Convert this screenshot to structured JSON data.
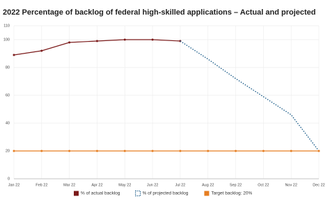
{
  "chart_data": {
    "type": "line",
    "title": "2022 Percentage of backlog of federal high-skilled applications – Actual and projected",
    "categories": [
      "Jan 22",
      "Feb 22",
      "Mar 22",
      "Apr 22",
      "May 22",
      "Jun 22",
      "Jul 22",
      "Aug 22",
      "Sep 22",
      "Oct 22",
      "Nov 22",
      "Dec 22"
    ],
    "series": [
      {
        "name": "% of actual backlog",
        "color": "#7b1a1a",
        "style": "solid",
        "markers": true,
        "values": [
          89,
          92,
          98,
          99,
          100,
          100,
          99,
          null,
          null,
          null,
          null,
          null
        ]
      },
      {
        "name": "% of projected backlog",
        "color": "#1f5f8b",
        "style": "dotted",
        "markers": false,
        "values": [
          null,
          null,
          null,
          null,
          null,
          null,
          99,
          86,
          72,
          59,
          46,
          20
        ]
      },
      {
        "name": "Target backlog: 20%",
        "color": "#e67e22",
        "style": "solid",
        "markers": true,
        "values": [
          20,
          20,
          20,
          20,
          20,
          20,
          20,
          20,
          20,
          20,
          20,
          20
        ]
      }
    ],
    "ylim": [
      0,
      110
    ],
    "yticks": [
      0,
      20,
      40,
      60,
      80,
      100,
      110
    ],
    "grid": true,
    "legend": "bottom"
  }
}
